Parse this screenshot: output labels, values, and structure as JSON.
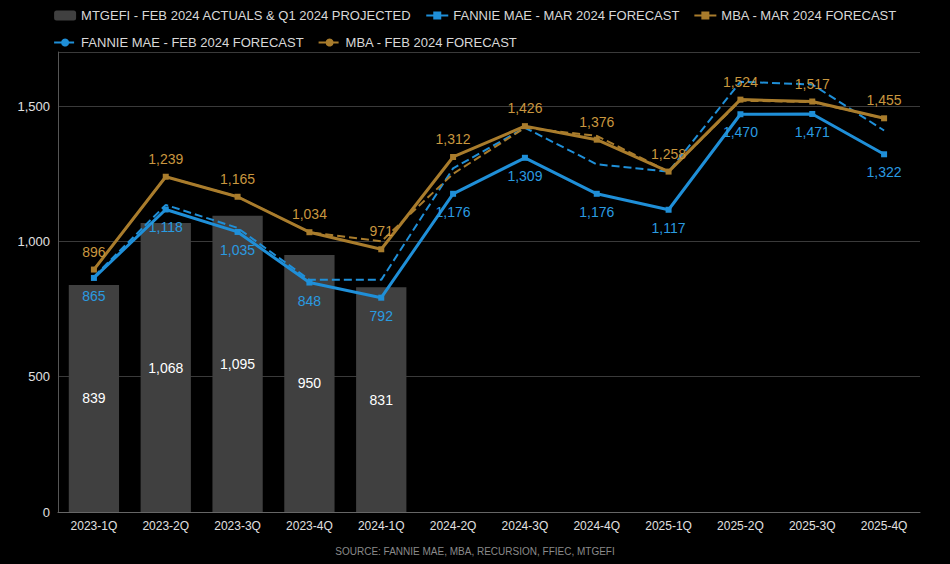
{
  "chart_data": {
    "type": "bar",
    "annotations": [
      "SOURCE: FANNIE MAE, MBA, RECURSION, FFIEC, MTGEFI"
    ],
    "categories": [
      "2023-1Q",
      "2023-2Q",
      "2023-3Q",
      "2023-4Q",
      "2024-1Q",
      "2024-2Q",
      "2024-3Q",
      "2024-4Q",
      "2025-1Q",
      "2025-2Q",
      "2025-3Q",
      "2025-4Q"
    ],
    "ylim": [
      0,
      1700
    ],
    "yticks": [
      0,
      500,
      {
        "value": 1000,
        "label": "1,000"
      },
      {
        "value": 1500,
        "label": "1,500"
      }
    ],
    "grid": true,
    "legend": "top",
    "series": [
      {
        "name": "MTGEFI - FEB 2024 ACTUALS & Q1 2024 PROJECTED",
        "type": "bar",
        "color": "#404040",
        "data_labels": true,
        "values": [
          839,
          1068,
          1095,
          950,
          831,
          null,
          null,
          null,
          null,
          null,
          null,
          null
        ],
        "value_labels": [
          "839",
          "1,068",
          "1,095",
          "950",
          "831",
          null,
          null,
          null,
          null,
          null,
          null,
          null
        ]
      },
      {
        "name": "FANNIE MAE - MAR 2024 FORECAST",
        "type": "line",
        "color": "#1f8fd8",
        "marker": "square",
        "line_style": "solid",
        "data_labels": true,
        "values": [
          865,
          1118,
          1035,
          848,
          792,
          1176,
          1309,
          1176,
          1117,
          1470,
          1471,
          1322
        ],
        "value_labels": [
          "865",
          "1,118",
          "1,035",
          "848",
          "792",
          "1,176",
          "1,309",
          "1,176",
          "1,117",
          "1,470",
          "1,471",
          "1,322"
        ]
      },
      {
        "name": "MBA - MAR 2024 FORECAST",
        "type": "line",
        "color": "#a97c2c",
        "marker": "square",
        "line_style": "solid",
        "data_labels": true,
        "values": [
          896,
          1239,
          1165,
          1034,
          971,
          1312,
          1426,
          1376,
          1258,
          1524,
          1517,
          1455
        ],
        "value_labels": [
          "896",
          "1,239",
          "1,165",
          "1,034",
          "971",
          "1,312",
          "1,426",
          "1,376",
          "1,258",
          "1,524",
          "1,517",
          "1,455"
        ]
      },
      {
        "name": "FANNIE MAE - FEB 2024 FORECAST",
        "type": "line",
        "color": "#1f8fd8",
        "marker": "none",
        "line_style": "dashed",
        "data_labels": false,
        "values": [
          870,
          1135,
          1050,
          858,
          858,
          1270,
          1420,
          1285,
          1258,
          1590,
          1580,
          1410
        ]
      },
      {
        "name": "MBA - FEB 2024 FORECAST",
        "type": "line",
        "color": "#a97c2c",
        "marker": "none",
        "line_style": "dashed",
        "data_labels": false,
        "values": [
          896,
          1239,
          1165,
          1034,
          1000,
          1250,
          1420,
          1390,
          1258,
          1520,
          1515,
          1455
        ]
      }
    ]
  }
}
